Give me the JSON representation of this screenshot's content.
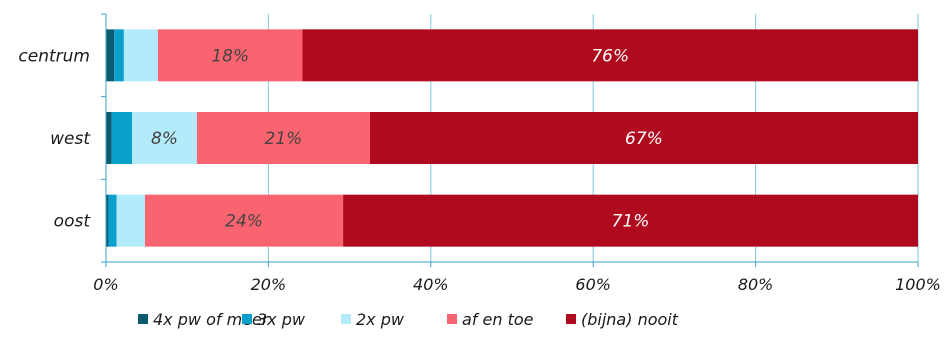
{
  "chart_data": {
    "type": "bar",
    "orientation": "horizontal",
    "stacked": "percent",
    "categories": [
      "centrum",
      "west",
      "oost"
    ],
    "series": [
      {
        "name": "4x pw of meer",
        "color": "#0b5a70",
        "values": [
          1,
          0.7,
          0.3
        ],
        "labels": [
          "",
          "",
          ""
        ]
      },
      {
        "name": "3x pw",
        "color": "#0aa0cc",
        "values": [
          1.2,
          2.5,
          1
        ],
        "labels": [
          "",
          "",
          ""
        ]
      },
      {
        "name": "2x pw",
        "color": "#b3ebfa",
        "values": [
          4.2,
          8,
          3.5
        ],
        "labels": [
          "",
          "8%",
          ""
        ]
      },
      {
        "name": "af en toe",
        "color": "#fa6470",
        "values": [
          17.8,
          21.3,
          24.4
        ],
        "labels": [
          "18%",
          "21%",
          "24%"
        ]
      },
      {
        "name": "(bijna) nooit",
        "color": "#b00a1e",
        "values": [
          75.8,
          67.5,
          70.8
        ],
        "labels": [
          "76%",
          "67%",
          "71%"
        ]
      }
    ],
    "xlim": [
      0,
      100
    ],
    "x_ticks": [
      "0%",
      "20%",
      "40%",
      "60%",
      "80%",
      "100%"
    ],
    "grid": "vertical",
    "legend_position": "bottom",
    "label_colors": {
      "light": "#ffffff",
      "dark": "#444444"
    }
  }
}
